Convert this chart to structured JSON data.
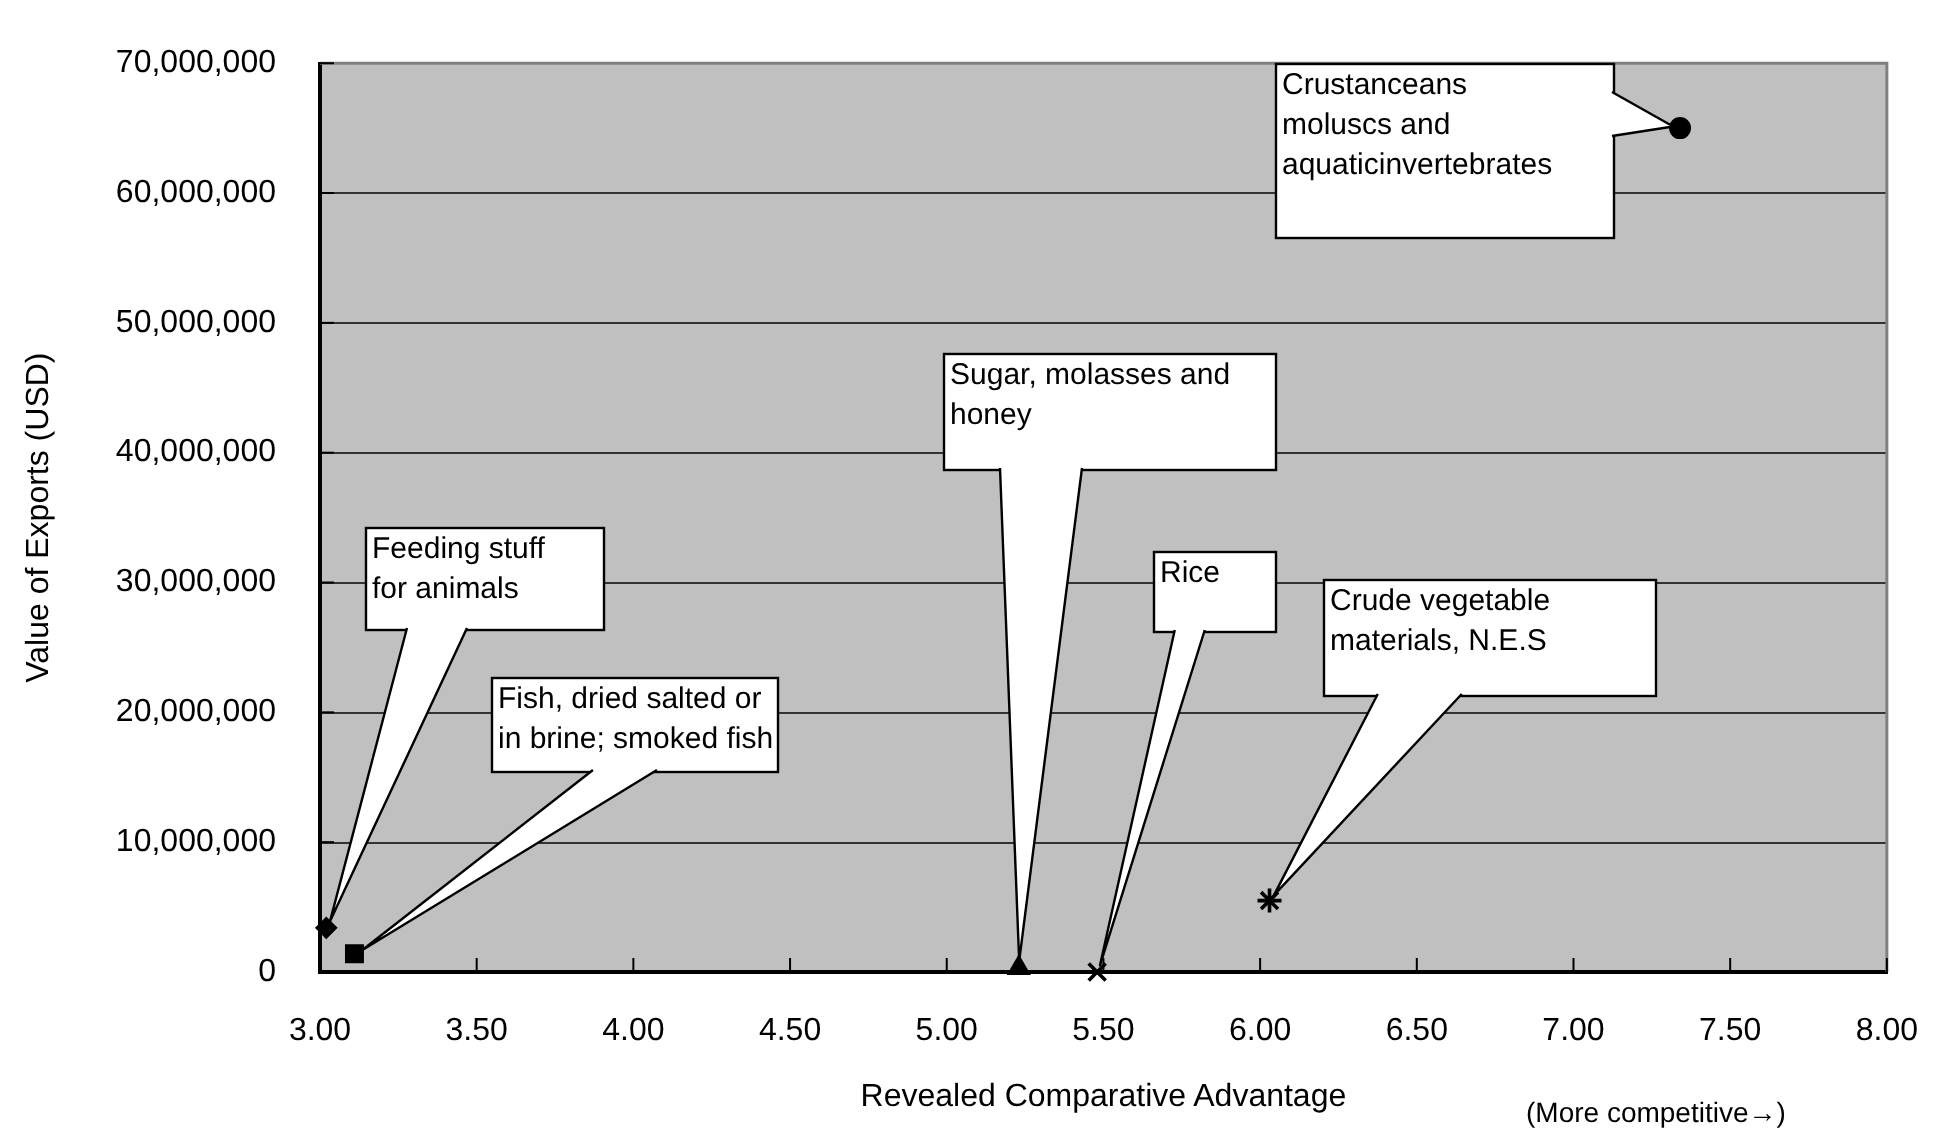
{
  "chart_data": {
    "type": "scatter",
    "xlabel": "Revealed Comparative Advantage",
    "ylabel": "Value of Exports (USD)",
    "annotations": [
      {
        "text": "Feeding stuff for animals",
        "x": 3.02,
        "y": 3400000
      },
      "Fish, dried salted or in brine; smoked fish",
      {
        "text": "Sugar, molasses and honey",
        "x": 5.23,
        "y": 300000
      },
      {
        "text": "Rice",
        "x": 5.48,
        "y": 0
      },
      "Crude vegetable materials, N.E.S",
      "Crustanceans moluscs and aquaticinvertebrates",
      "(More competitive→)"
    ],
    "xlim": [
      3,
      8
    ],
    "ylim": [
      0,
      70000000
    ],
    "xticks": [
      {
        "value": 3,
        "label": "3.00"
      },
      {
        "value": 3.5,
        "label": "3.50"
      },
      {
        "value": 4,
        "label": "4.00"
      },
      {
        "value": 4.5,
        "label": "4.50"
      },
      {
        "value": 5,
        "label": "5.00"
      },
      {
        "value": 5.5,
        "label": "5.50"
      },
      {
        "value": 6,
        "label": "6.00"
      },
      {
        "value": 6.5,
        "label": "6.50"
      },
      {
        "value": 7,
        "label": "7.00"
      },
      {
        "value": 7.5,
        "label": "7.50"
      },
      {
        "value": 8,
        "label": "8.00"
      }
    ],
    "yticks": [
      0,
      {
        "value": 10000000,
        "label": "10,000,000"
      },
      {
        "value": 20000000,
        "label": "20,000,000"
      },
      {
        "value": 30000000,
        "label": "30,000,000"
      },
      {
        "value": 40000000,
        "label": "40,000,000"
      },
      {
        "value": 50000000,
        "label": "50,000,000"
      },
      {
        "value": 60000000,
        "label": "60,000,000"
      },
      {
        "value": 70000000,
        "label": "70,000,000"
      }
    ],
    "grid": "y",
    "series": [
      {
        "color": "#000000",
        "marker": "diamond",
        "x": [
          3.02
        ],
        "values": [
          3400000
        ]
      },
      {
        "color": "#000000",
        "marker": "square",
        "x": [
          3.11
        ],
        "values": [
          1400000
        ]
      },
      {
        "color": "#000000",
        "marker": "triangle",
        "x": [
          5.23
        ],
        "values": [
          300000
        ]
      },
      {
        "color": "#000000",
        "marker": "cross",
        "x": [
          5.48
        ],
        "values": [
          0
        ]
      },
      {
        "color": "#000000",
        "x": [
          6.03
        ],
        "values": [
          5500000
        ]
      },
      {
        "color": "#000000",
        "marker": "circle",
        "x": [
          7.34
        ],
        "values": [
          65000000
        ]
      }
    ]
  }
}
